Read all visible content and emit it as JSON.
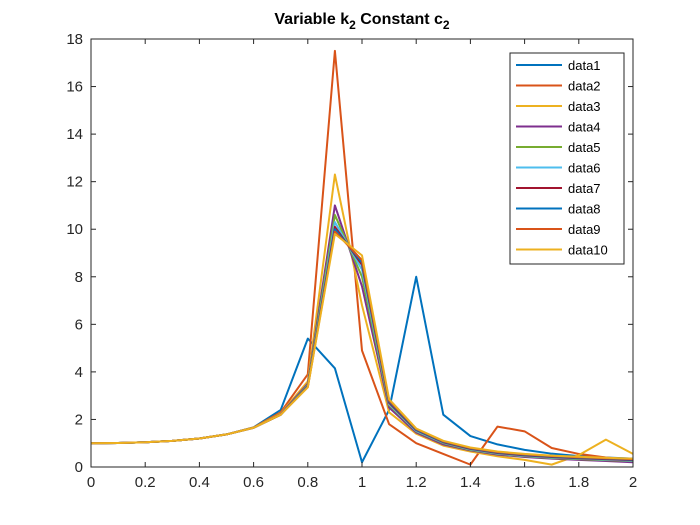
{
  "chart_data": {
    "type": "line",
    "title": "Variable k2 Constant c2",
    "title_parts": [
      "Variable k",
      "2",
      " Constant c",
      "2"
    ],
    "xlabel": "",
    "ylabel": "",
    "xlim": [
      0,
      2
    ],
    "ylim": [
      0,
      18
    ],
    "xticks": [
      "0",
      "0.2",
      "0.4",
      "0.6",
      "0.8",
      "1",
      "1.2",
      "1.4",
      "1.6",
      "1.8",
      "2"
    ],
    "yticks": [
      "0",
      "2",
      "4",
      "6",
      "8",
      "10",
      "12",
      "14",
      "16",
      "18"
    ],
    "grid": false,
    "legend_position": "top-right",
    "x": [
      0,
      0.1,
      0.2,
      0.3,
      0.4,
      0.5,
      0.6,
      0.7,
      0.8,
      0.9,
      1.0,
      1.1,
      1.2,
      1.3,
      1.4,
      1.5,
      1.6,
      1.7,
      1.8,
      1.9,
      2.0
    ],
    "series": [
      {
        "name": "data1",
        "color": "#0072BD",
        "values": [
          1.0,
          1.01,
          1.04,
          1.1,
          1.2,
          1.37,
          1.67,
          2.4,
          5.4,
          4.15,
          0.2,
          2.4,
          8.0,
          2.2,
          1.3,
          0.95,
          0.72,
          0.56,
          0.46,
          0.4,
          0.35
        ]
      },
      {
        "name": "data2",
        "color": "#D95319",
        "values": [
          1.0,
          1.01,
          1.04,
          1.1,
          1.2,
          1.37,
          1.66,
          2.3,
          3.9,
          17.5,
          4.9,
          1.8,
          1.0,
          0.55,
          0.1,
          1.7,
          1.5,
          0.8,
          0.55,
          0.4,
          0.3
        ]
      },
      {
        "name": "data3",
        "color": "#EDB120",
        "values": [
          1.0,
          1.01,
          1.04,
          1.1,
          1.2,
          1.37,
          1.66,
          2.25,
          3.6,
          12.3,
          6.8,
          2.3,
          1.4,
          0.9,
          0.65,
          0.45,
          0.3,
          0.1,
          0.5,
          1.15,
          0.55
        ]
      },
      {
        "name": "data4",
        "color": "#7E2F8E",
        "values": [
          1.0,
          1.01,
          1.04,
          1.1,
          1.2,
          1.37,
          1.65,
          2.22,
          3.5,
          11.0,
          7.6,
          2.5,
          1.45,
          0.95,
          0.7,
          0.52,
          0.42,
          0.35,
          0.3,
          0.25,
          0.2
        ]
      },
      {
        "name": "data5",
        "color": "#77AC30",
        "values": [
          1.0,
          1.01,
          1.04,
          1.1,
          1.2,
          1.37,
          1.65,
          2.2,
          3.45,
          10.6,
          8.0,
          2.6,
          1.5,
          1.0,
          0.72,
          0.55,
          0.45,
          0.38,
          0.33,
          0.29,
          0.25
        ]
      },
      {
        "name": "data6",
        "color": "#4DBEEE",
        "values": [
          1.0,
          1.01,
          1.04,
          1.1,
          1.2,
          1.37,
          1.65,
          2.2,
          3.42,
          10.3,
          8.3,
          2.65,
          1.52,
          1.02,
          0.74,
          0.57,
          0.47,
          0.4,
          0.35,
          0.31,
          0.27
        ]
      },
      {
        "name": "data7",
        "color": "#A2142F",
        "values": [
          1.0,
          1.01,
          1.04,
          1.1,
          1.2,
          1.37,
          1.65,
          2.2,
          3.4,
          10.1,
          8.5,
          2.7,
          1.55,
          1.04,
          0.76,
          0.59,
          0.49,
          0.42,
          0.37,
          0.33,
          0.29
        ]
      },
      {
        "name": "data8",
        "color": "#0072BD",
        "values": [
          1.0,
          1.01,
          1.04,
          1.1,
          1.2,
          1.37,
          1.65,
          2.2,
          3.38,
          10.0,
          8.6,
          2.75,
          1.57,
          1.06,
          0.78,
          0.61,
          0.51,
          0.44,
          0.39,
          0.35,
          0.31
        ]
      },
      {
        "name": "data9",
        "color": "#D95319",
        "values": [
          1.0,
          1.01,
          1.04,
          1.1,
          1.2,
          1.37,
          1.65,
          2.2,
          3.36,
          9.9,
          8.7,
          2.8,
          1.6,
          1.08,
          0.8,
          0.63,
          0.53,
          0.46,
          0.41,
          0.37,
          0.33
        ]
      },
      {
        "name": "data10",
        "color": "#EDB120",
        "values": [
          1.0,
          1.01,
          1.04,
          1.1,
          1.2,
          1.37,
          1.65,
          2.2,
          3.35,
          9.8,
          8.9,
          2.85,
          1.62,
          1.1,
          0.82,
          0.65,
          0.55,
          0.48,
          0.43,
          0.39,
          0.35
        ]
      }
    ]
  }
}
